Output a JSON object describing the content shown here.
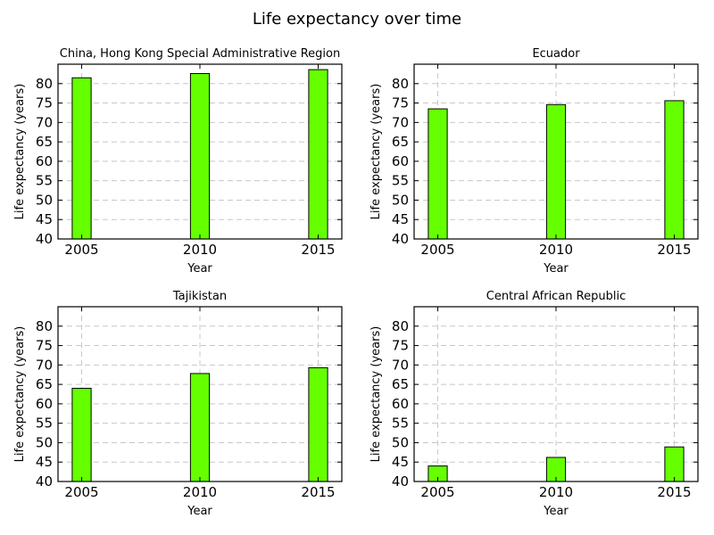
{
  "figure": {
    "title": "Life expectancy over time"
  },
  "style": {
    "bar_color": "#66ff00"
  },
  "chart_data": [
    {
      "type": "bar",
      "title": "China, Hong Kong Special Administrative Region",
      "xlabel": "Year",
      "ylabel": "Life expectancy (years)",
      "categories": [
        "2005",
        "2010",
        "2015"
      ],
      "x": [
        2005,
        2010,
        2015
      ],
      "values": [
        81.5,
        82.6,
        83.6
      ],
      "ylim": [
        40,
        85
      ],
      "xlim": [
        2004,
        2016
      ],
      "yticks": [
        40,
        45,
        50,
        55,
        60,
        65,
        70,
        75,
        80
      ],
      "xticks": [
        2005,
        2010,
        2015
      ],
      "grid": true
    },
    {
      "type": "bar",
      "title": "Ecuador",
      "xlabel": "Year",
      "ylabel": "Life expectancy (years)",
      "categories": [
        "2005",
        "2010",
        "2015"
      ],
      "x": [
        2005,
        2010,
        2015
      ],
      "values": [
        73.5,
        74.6,
        75.6
      ],
      "ylim": [
        40,
        85
      ],
      "xlim": [
        2004,
        2016
      ],
      "yticks": [
        40,
        45,
        50,
        55,
        60,
        65,
        70,
        75,
        80
      ],
      "xticks": [
        2005,
        2010,
        2015
      ],
      "grid": true
    },
    {
      "type": "bar",
      "title": "Tajikistan",
      "xlabel": "Year",
      "ylabel": "Life expectancy (years)",
      "categories": [
        "2005",
        "2010",
        "2015"
      ],
      "x": [
        2005,
        2010,
        2015
      ],
      "values": [
        64.0,
        67.8,
        69.3
      ],
      "ylim": [
        40,
        85
      ],
      "xlim": [
        2004,
        2016
      ],
      "yticks": [
        40,
        45,
        50,
        55,
        60,
        65,
        70,
        75,
        80
      ],
      "xticks": [
        2005,
        2010,
        2015
      ],
      "grid": true
    },
    {
      "type": "bar",
      "title": "Central African Republic",
      "xlabel": "Year",
      "ylabel": "Life expectancy (years)",
      "categories": [
        "2005",
        "2010",
        "2015"
      ],
      "x": [
        2005,
        2010,
        2015
      ],
      "values": [
        44.0,
        46.2,
        48.9
      ],
      "ylim": [
        40,
        85
      ],
      "xlim": [
        2004,
        2016
      ],
      "yticks": [
        40,
        45,
        50,
        55,
        60,
        65,
        70,
        75,
        80
      ],
      "xticks": [
        2005,
        2010,
        2015
      ],
      "grid": true
    }
  ]
}
